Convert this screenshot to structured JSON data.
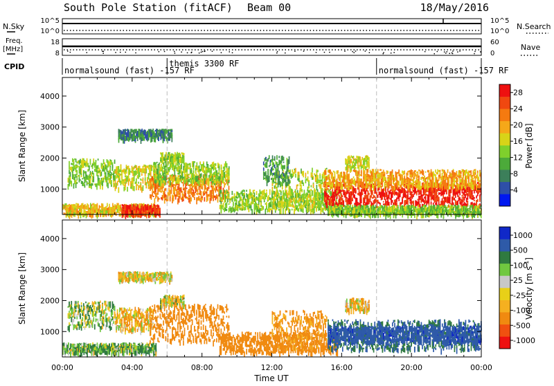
{
  "header": {
    "station": "South Pole Station (fitACF)",
    "beam": "Beam 00",
    "date": "18/May/2016"
  },
  "side_labels": {
    "nsky": "N.Sky",
    "nsearch": "N.Search",
    "freq": "Freq.",
    "freq_unit": "[MHz]",
    "nave": "Nave",
    "cpid": "CPID"
  },
  "strip_ticks": {
    "noise_top_left": "10^5",
    "noise_bottom_left": "10^0",
    "noise_top_right": "10^5",
    "noise_bottom_right": "10^0",
    "freq_top": "18",
    "freq_bottom": "8",
    "nave_top": "60",
    "nave_bottom": "0"
  },
  "cpid_segments": [
    {
      "label": "normalsound (fast) -157 RF",
      "start": 0.0
    },
    {
      "label": "themis 3300 RF",
      "start": 6.0
    },
    {
      "label": "normalsound (fast) -157 RF",
      "start": 18.0
    }
  ],
  "colors": {
    "power_scale": [
      "#0018f0",
      "#2e4fa8",
      "#3c7f5a",
      "#4caa3a",
      "#7fd02c",
      "#d8d418",
      "#f5a819",
      "#f57a10",
      "#f04810",
      "#ee1010"
    ],
    "velocity_scale": [
      "#ee1010",
      "#f05010",
      "#f08a10",
      "#f5b020",
      "#e8d018",
      "#c8c8c8",
      "#70c840",
      "#2f7a40",
      "#2e5aa8",
      "#1028c8"
    ],
    "grey_dash": "#bbbbbb"
  },
  "chart_data": [
    {
      "type": "heatmap",
      "title": "Power",
      "xlabel": "Time UT",
      "ylabel": "Slant Range [km]",
      "x_ticks": [
        "00:00",
        "04:00",
        "08:00",
        "12:00",
        "16:00",
        "20:00",
        "00:00"
      ],
      "x_range_hours": [
        0,
        24
      ],
      "y_ticks": [
        "1000",
        "2000",
        "3000",
        "4000"
      ],
      "y_range_km": [
        180,
        4600
      ],
      "colorbar_label": "Power [dB]",
      "colorbar_ticks": [
        "4",
        "8",
        "12",
        "16",
        "20",
        "24",
        "28"
      ],
      "colorbar_range": [
        0,
        30
      ],
      "echo_regions": [
        {
          "t0": 0.3,
          "t1": 3.0,
          "r0": 1150,
          "r1": 2000,
          "level": 13
        },
        {
          "t0": 3.0,
          "t1": 5.6,
          "r0": 1050,
          "r1": 1800,
          "level": 16
        },
        {
          "t0": 5.0,
          "t1": 9.6,
          "r0": 700,
          "r1": 1500,
          "level": 22
        },
        {
          "t0": 5.2,
          "t1": 9.6,
          "r0": 1250,
          "r1": 1900,
          "level": 14
        },
        {
          "t0": 5.6,
          "t1": 7.0,
          "r0": 1950,
          "r1": 2200,
          "level": 14
        },
        {
          "t0": 3.2,
          "t1": 6.3,
          "r0": 2650,
          "r1": 2950,
          "level": 8
        },
        {
          "t0": 0.0,
          "t1": 5.4,
          "r0": 220,
          "r1": 550,
          "level": 18
        },
        {
          "t0": 3.4,
          "t1": 5.6,
          "r0": 220,
          "r1": 520,
          "level": 27
        },
        {
          "t0": 9.0,
          "t1": 16.0,
          "r0": 350,
          "r1": 1000,
          "level": 14
        },
        {
          "t0": 12.0,
          "t1": 15.2,
          "r0": 450,
          "r1": 1700,
          "level": 15
        },
        {
          "t0": 11.5,
          "t1": 13.0,
          "r0": 1200,
          "r1": 2100,
          "level": 9
        },
        {
          "t0": 15.0,
          "t1": 24.0,
          "r0": 500,
          "r1": 1250,
          "level": 28
        },
        {
          "t0": 15.0,
          "t1": 24.0,
          "r0": 1100,
          "r1": 1650,
          "level": 20
        },
        {
          "t0": 15.2,
          "t1": 24.0,
          "r0": 220,
          "r1": 500,
          "level": 13
        },
        {
          "t0": 16.2,
          "t1": 17.6,
          "r0": 1700,
          "r1": 2100,
          "level": 16
        }
      ]
    },
    {
      "type": "heatmap",
      "title": "Velocity",
      "xlabel": "Time UT",
      "ylabel": "Slant Range [km]",
      "x_ticks": [
        "00:00",
        "04:00",
        "08:00",
        "12:00",
        "16:00",
        "20:00",
        "00:00"
      ],
      "x_range_hours": [
        0,
        24
      ],
      "y_ticks": [
        "1000",
        "2000",
        "3000",
        "4000"
      ],
      "y_range_km": [
        180,
        4600
      ],
      "colorbar_label": "Velocity [m s^-1]",
      "colorbar_ticks": [
        "1000",
        "500",
        "100",
        "25",
        "-25",
        "-100",
        "-500",
        "-1000"
      ],
      "echo_regions": [
        {
          "t0": 0.3,
          "t1": 3.0,
          "r0": 1150,
          "r1": 2000,
          "level": 60
        },
        {
          "t0": 3.0,
          "t1": 5.2,
          "r0": 1050,
          "r1": 1800,
          "level": -80
        },
        {
          "t0": 5.0,
          "t1": 9.6,
          "r0": 700,
          "r1": 1900,
          "level": -300
        },
        {
          "t0": 5.6,
          "t1": 7.0,
          "r0": 1900,
          "r1": 2200,
          "level": 0
        },
        {
          "t0": 3.2,
          "t1": 6.3,
          "r0": 2700,
          "r1": 2950,
          "level": -30
        },
        {
          "t0": 0.0,
          "t1": 5.4,
          "r0": 350,
          "r1": 650,
          "level": 80
        },
        {
          "t0": 9.0,
          "t1": 15.8,
          "r0": 350,
          "r1": 1000,
          "level": -300
        },
        {
          "t0": 12.0,
          "t1": 15.2,
          "r0": 450,
          "r1": 1700,
          "level": -150
        },
        {
          "t0": 15.2,
          "t1": 24.0,
          "r0": 450,
          "r1": 1400,
          "level": 500
        },
        {
          "t0": 15.2,
          "t1": 24.0,
          "r0": 700,
          "r1": 1200,
          "level": 900
        },
        {
          "t0": 16.2,
          "t1": 17.6,
          "r0": 1700,
          "r1": 2100,
          "level": -60
        }
      ]
    }
  ]
}
